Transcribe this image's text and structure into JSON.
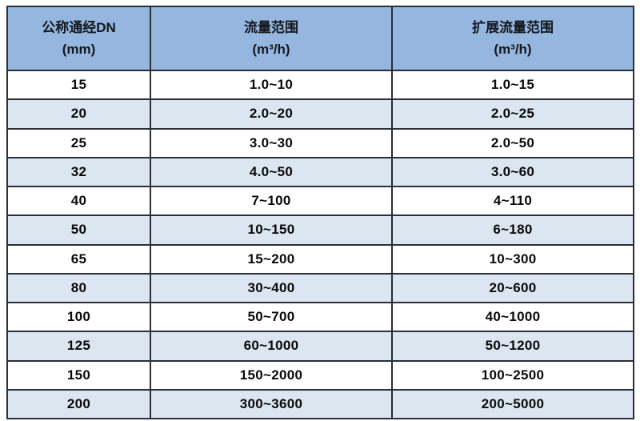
{
  "colors": {
    "header_bg": "#95B6DF",
    "stripe_bg": "#DCE6F1",
    "row_bg": "#FFFFFF",
    "border": "#2A2F38",
    "header_text": "#14171D",
    "body_text": "#0A0A0A"
  },
  "chart_data": {
    "type": "table",
    "columns": [
      {
        "title": "公称通经DN",
        "unit": "(mm)"
      },
      {
        "title": "流量范围",
        "unit": "(m³/h)"
      },
      {
        "title": "扩展流量范围",
        "unit": "(m³/h)"
      }
    ],
    "rows": [
      [
        "15",
        "1.0~10",
        "1.0~15"
      ],
      [
        "20",
        "2.0~20",
        "2.0~25"
      ],
      [
        "25",
        "3.0~30",
        "2.0~50"
      ],
      [
        "32",
        "4.0~50",
        "3.0~60"
      ],
      [
        "40",
        "7~100",
        "4~110"
      ],
      [
        "50",
        "10~150",
        "6~180"
      ],
      [
        "65",
        "15~200",
        "10~300"
      ],
      [
        "80",
        "30~400",
        "20~600"
      ],
      [
        "100",
        "50~700",
        "40~1000"
      ],
      [
        "125",
        "60~1000",
        "50~1200"
      ],
      [
        "150",
        "150~2000",
        "100~2500"
      ],
      [
        "200",
        "300~3600",
        "200~5000"
      ]
    ]
  }
}
